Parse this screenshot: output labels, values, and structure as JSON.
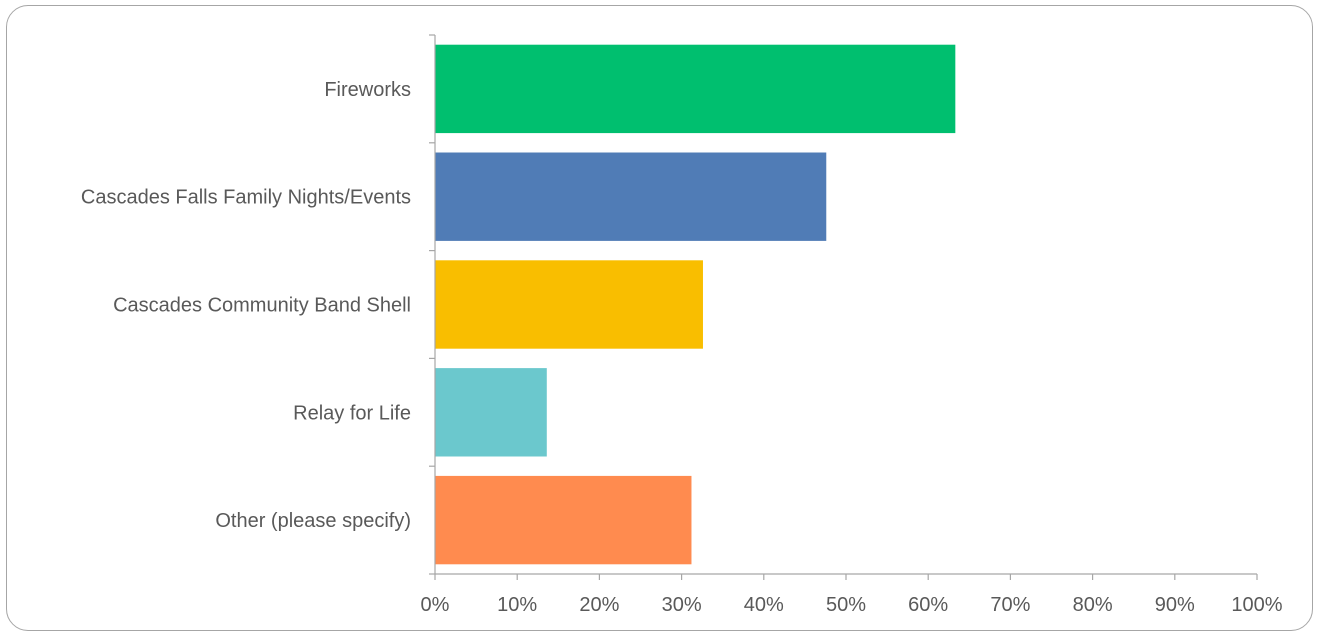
{
  "chart_data": {
    "type": "bar",
    "orientation": "horizontal",
    "categories": [
      "Fireworks",
      "Cascades Falls Family Nights/Events",
      "Cascades Community Band Shell",
      "Relay for Life",
      "Other (please specify)"
    ],
    "values": [
      63.3,
      47.6,
      32.6,
      13.6,
      31.2
    ],
    "bar_colors": [
      "#00bf6f",
      "#507cb6",
      "#f9be00",
      "#6bc8cd",
      "#ff8b4f"
    ],
    "x_ticks": [
      "0%",
      "10%",
      "20%",
      "30%",
      "40%",
      "50%",
      "60%",
      "70%",
      "80%",
      "90%",
      "100%"
    ],
    "xlim": [
      0,
      100
    ],
    "title": "",
    "xlabel": "",
    "ylabel": "",
    "grid": false,
    "legend": "none"
  }
}
